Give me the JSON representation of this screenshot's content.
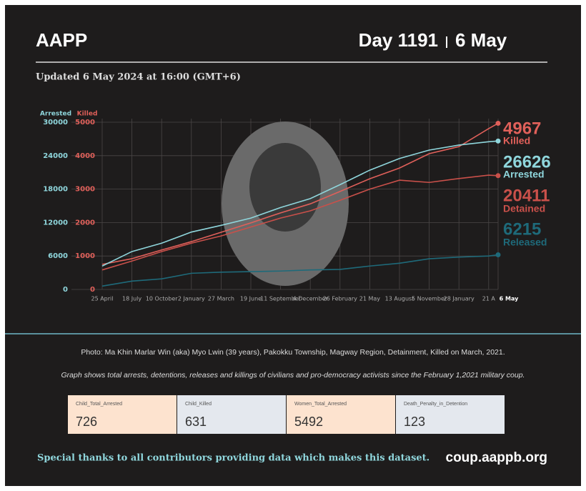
{
  "header": {
    "brand": "AAPP",
    "day": "Day 1191",
    "date": "6 May",
    "updated": "Updated 6 May 2024 at 16:00 (GMT+6)"
  },
  "chart_data": {
    "type": "line",
    "y_label": "Arrested",
    "y2_label": "Killed",
    "categories": [
      "25 April",
      "18 July",
      "10 October",
      "2 January",
      "27 March",
      "19 June",
      "11 September",
      "4 December",
      "26 February",
      "21 May",
      "13 August",
      "5 November",
      "28 January",
      "21 A",
      "6 May"
    ],
    "ylim": [
      0,
      30000
    ],
    "yticks": [
      0,
      6000,
      12000,
      18000,
      24000,
      30000
    ],
    "y2lim": [
      0,
      5000
    ],
    "y2ticks": [
      0,
      1000,
      2000,
      3000,
      4000,
      5000
    ],
    "grid": true,
    "series": [
      {
        "name": "Killed",
        "color": "#e0605a",
        "axis": "y2",
        "values": [
          750,
          920,
          1180,
          1430,
          1710,
          1990,
          2290,
          2560,
          2930,
          3310,
          3630,
          4060,
          4270,
          4810,
          4967
        ]
      },
      {
        "name": "Arrested",
        "color": "#8fd6dc",
        "values": [
          4200,
          6800,
          8300,
          10300,
          11500,
          12800,
          14700,
          16300,
          18800,
          21400,
          23500,
          25000,
          25900,
          26500,
          26626
        ]
      },
      {
        "name": "Detained",
        "color": "#c9504a",
        "values": [
          3500,
          5100,
          6800,
          8300,
          9600,
          11200,
          12800,
          14100,
          16000,
          18000,
          19600,
          19200,
          19900,
          20500,
          20411
        ]
      },
      {
        "name": "Released",
        "color": "#1e6a7a",
        "values": [
          600,
          1500,
          1900,
          2900,
          3100,
          3200,
          3300,
          3500,
          3600,
          4200,
          4700,
          5500,
          5800,
          6000,
          6215
        ]
      }
    ]
  },
  "captions": {
    "photo": "Photo: Ma Khin Marlar Win (aka) Myo Lwin (39 years), Pakokku Township, Magway Region, Detainment, Killed on March, 2021.",
    "graph": "Graph shows total arrests, detentions, releases and killings of civilians and pro-democracy activists since the February 1,2021 military coup."
  },
  "stats": [
    {
      "label": "Child_Total_Arrested",
      "value": 726
    },
    {
      "label": "Child_Killed",
      "value": 631
    },
    {
      "label": "Women_Total_Arrested",
      "value": 5492
    },
    {
      "label": "Death_Penalty_in_Detention",
      "value": 123
    }
  ],
  "footer": {
    "thanks": "Special thanks to all contributors providing data which makes this dataset.",
    "url": "coup.aappb.org"
  }
}
